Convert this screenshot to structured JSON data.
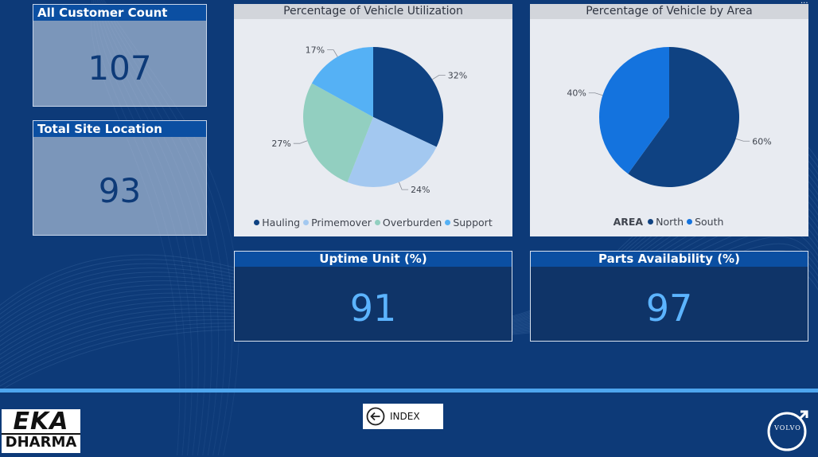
{
  "kpis": {
    "customer_count": {
      "label": "All Customer Count",
      "value": "107"
    },
    "site_location": {
      "label": "Total Site Location",
      "value": "93"
    },
    "uptime": {
      "label": "Uptime Unit (%)",
      "value": "91"
    },
    "parts": {
      "label": "Parts Availability (%)",
      "value": "97"
    }
  },
  "charts": {
    "utilization": {
      "title": "Percentage of Vehicle Utilization"
    },
    "area": {
      "title": "Percentage of Vehicle by Area",
      "legend_title": "AREA"
    }
  },
  "chart_data": [
    {
      "type": "pie",
      "title": "Percentage of Vehicle Utilization",
      "categories": [
        "Hauling",
        "Primemover",
        "Overburden",
        "Support"
      ],
      "values": [
        32,
        24,
        27,
        17
      ],
      "labels": [
        "32%",
        "24%",
        "27%",
        "17%"
      ],
      "colors": [
        "#0f4282",
        "#a3c8f0",
        "#92cfc0",
        "#55b1f5"
      ],
      "legend_position": "bottom"
    },
    {
      "type": "pie",
      "title": "Percentage of Vehicle by Area",
      "legend_title": "AREA",
      "categories": [
        "North",
        "South"
      ],
      "values": [
        60,
        40
      ],
      "labels": [
        "60%",
        "40%"
      ],
      "colors": [
        "#0f4282",
        "#1473de"
      ],
      "legend_position": "bottom"
    }
  ],
  "navigation": {
    "index_label": "INDEX"
  },
  "logos": {
    "eka_line1": "EKA",
    "eka_line2": "DHARMA",
    "volvo": "VOLVO"
  },
  "theme": {
    "background": "#0d3a78",
    "header_blue": "#0b4fa2",
    "value_blue": "#5cb4ff",
    "divider": "#4ea6ee"
  },
  "icons": [
    "arrow-left-circle-icon",
    "more-options-icon"
  ]
}
